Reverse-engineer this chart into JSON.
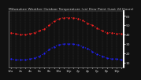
{
  "title": "Milwaukee Weather Outdoor Temperature (vs) Dew Point (Last 24 Hours)",
  "title_fontsize": 3.2,
  "background_color": "#111111",
  "plot_bg_color": "#111111",
  "temp_color": "#ff2222",
  "dew_color": "#2222ff",
  "temp_values": [
    42,
    41,
    40,
    40,
    41,
    42,
    44,
    46,
    50,
    54,
    57,
    58,
    58,
    58,
    57,
    55,
    52,
    50,
    47,
    44,
    42,
    42,
    41,
    41
  ],
  "dew_values": [
    14,
    13,
    13,
    13,
    14,
    15,
    17,
    20,
    24,
    27,
    29,
    30,
    30,
    30,
    29,
    27,
    25,
    22,
    19,
    17,
    15,
    14,
    14,
    13
  ],
  "x_labels": [
    "12a",
    "",
    "2a",
    "",
    "4a",
    "",
    "6a",
    "",
    "8a",
    "",
    "10a",
    "",
    "12p",
    "",
    "2p",
    "",
    "4p",
    "",
    "6p",
    "",
    "8p",
    "",
    "10p",
    ""
  ],
  "y_ticks": [
    10,
    20,
    30,
    40,
    50,
    60
  ],
  "ylim": [
    5,
    65
  ],
  "grid_color": "#555555",
  "line_width": 0.8,
  "marker": ".",
  "marker_size": 1.2,
  "y_label_fontsize": 3.2,
  "x_label_fontsize": 2.8,
  "tick_color": "#cccccc",
  "title_color": "#cccccc"
}
